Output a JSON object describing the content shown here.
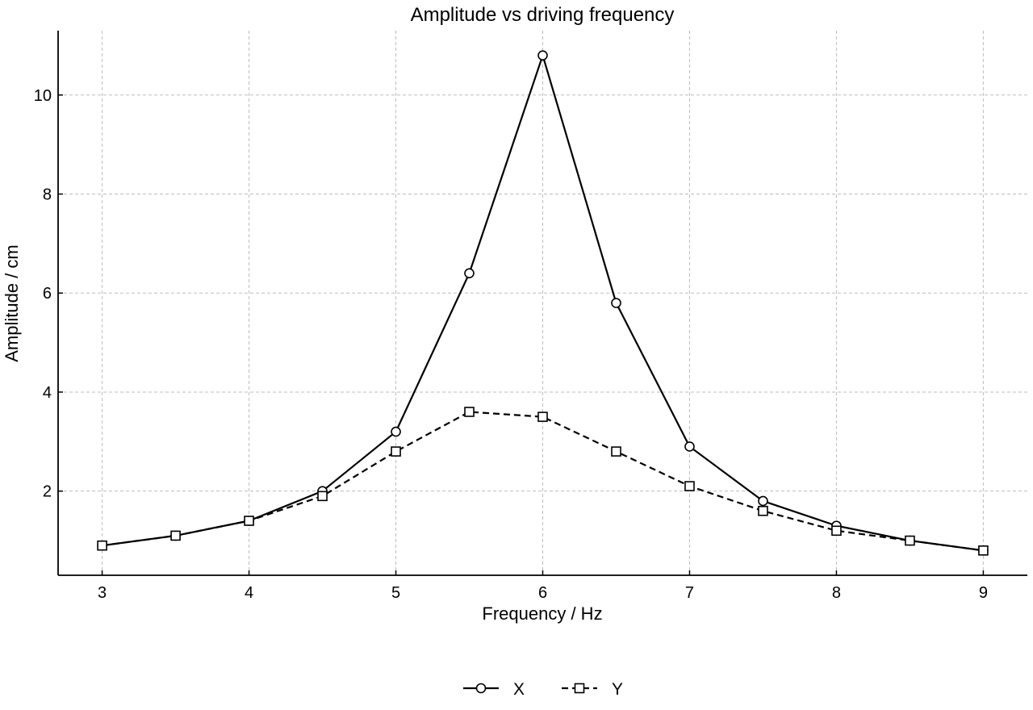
{
  "chart_data": {
    "type": "line",
    "title": "Amplitude vs driving frequency",
    "xlabel": "Frequency / Hz",
    "ylabel": "Amplitude / cm",
    "xlim": [
      2.7,
      9.3
    ],
    "ylim": [
      0.3,
      11.3
    ],
    "x_ticks": [
      3,
      4,
      5,
      6,
      7,
      8,
      9
    ],
    "y_ticks": [
      2,
      4,
      6,
      8,
      10
    ],
    "grid": true,
    "legend_position": "bottom-center",
    "x": [
      3,
      3.5,
      4,
      4.5,
      5,
      5.5,
      6,
      6.5,
      7,
      7.5,
      8,
      8.5,
      9
    ],
    "series": [
      {
        "name": "X",
        "marker": "circle",
        "line_style": "solid",
        "color": "#000000",
        "values": [
          0.9,
          1.1,
          1.4,
          2.0,
          3.2,
          6.4,
          10.8,
          5.8,
          2.9,
          1.8,
          1.3,
          1.0,
          0.8
        ]
      },
      {
        "name": "Y",
        "marker": "square",
        "line_style": "dashed",
        "color": "#000000",
        "values": [
          0.9,
          1.1,
          1.4,
          1.9,
          2.8,
          3.6,
          3.5,
          2.8,
          2.1,
          1.6,
          1.2,
          1.0,
          0.8
        ]
      }
    ]
  }
}
